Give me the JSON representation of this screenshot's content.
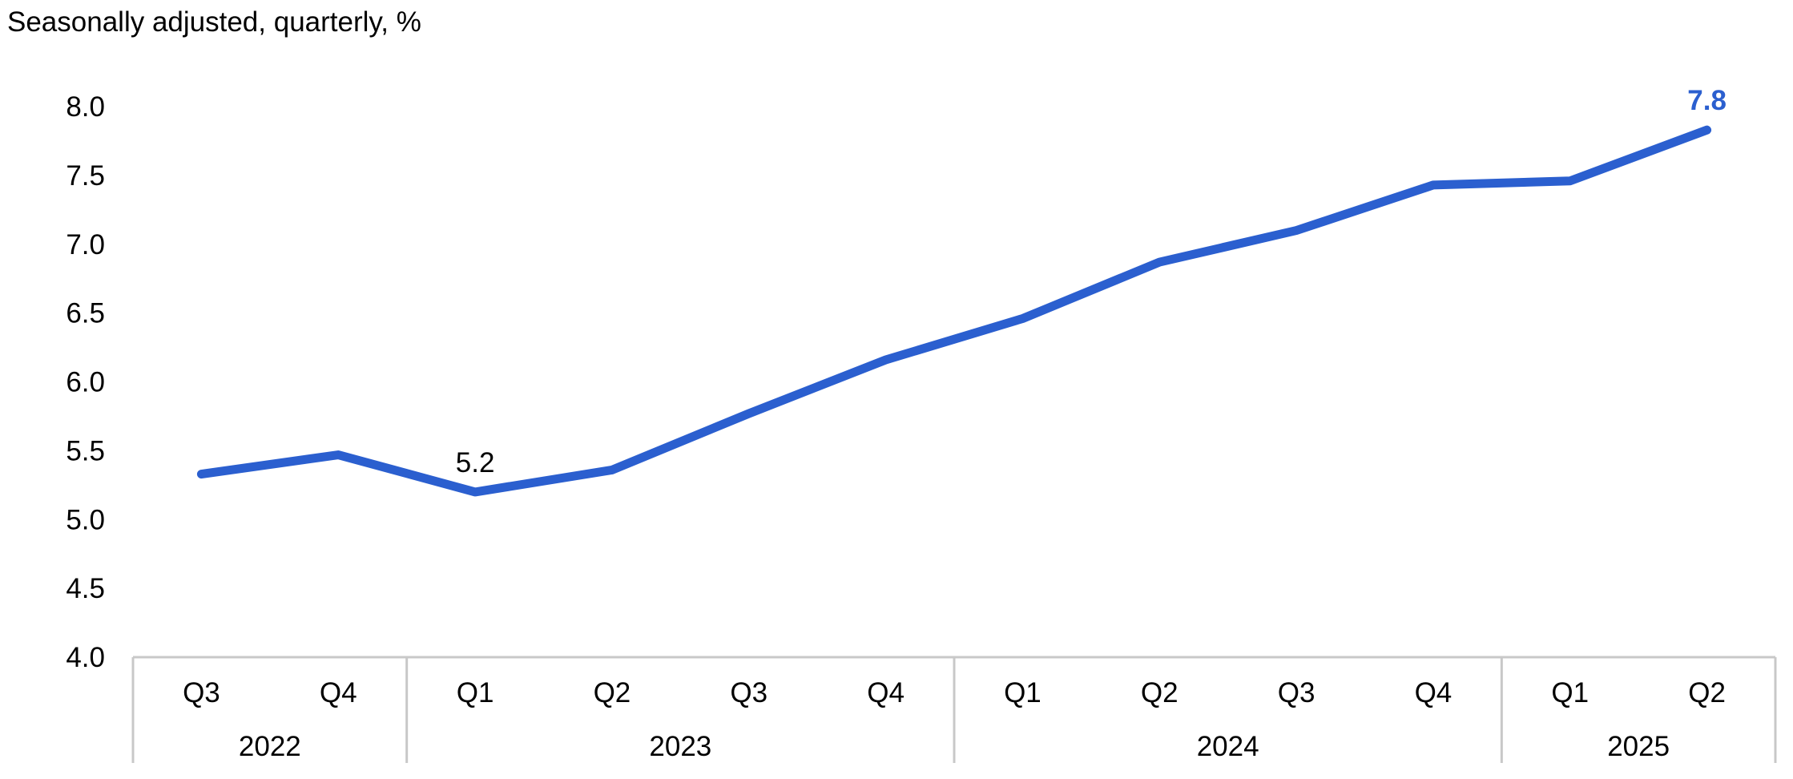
{
  "chart_data": {
    "type": "line",
    "subtitle": "Seasonally adjusted, quarterly, %",
    "categories": [
      "Q3",
      "Q4",
      "Q1",
      "Q2",
      "Q3",
      "Q4",
      "Q1",
      "Q2",
      "Q3",
      "Q4",
      "Q1",
      "Q2"
    ],
    "years": [
      {
        "label": "2022",
        "span": 2
      },
      {
        "label": "2023",
        "span": 4
      },
      {
        "label": "2024",
        "span": 4
      },
      {
        "label": "2025",
        "span": 2
      }
    ],
    "series": [
      {
        "values": [
          5.33,
          5.47,
          5.2,
          5.36,
          5.77,
          6.16,
          6.46,
          6.87,
          7.1,
          7.43,
          7.46,
          7.83
        ],
        "color": "#2b5fcf"
      }
    ],
    "annotations": [
      {
        "index": 2,
        "text": "5.2",
        "color": "#000000",
        "bold": false
      },
      {
        "index": 11,
        "text": "7.8",
        "color": "#2b5fcf",
        "bold": true
      }
    ],
    "ylim": [
      4.0,
      8.0
    ],
    "yticks": [
      "4.0",
      "4.5",
      "5.0",
      "5.5",
      "6.0",
      "6.5",
      "7.0",
      "7.5",
      "8.0"
    ],
    "grid": false,
    "legend": "none"
  }
}
